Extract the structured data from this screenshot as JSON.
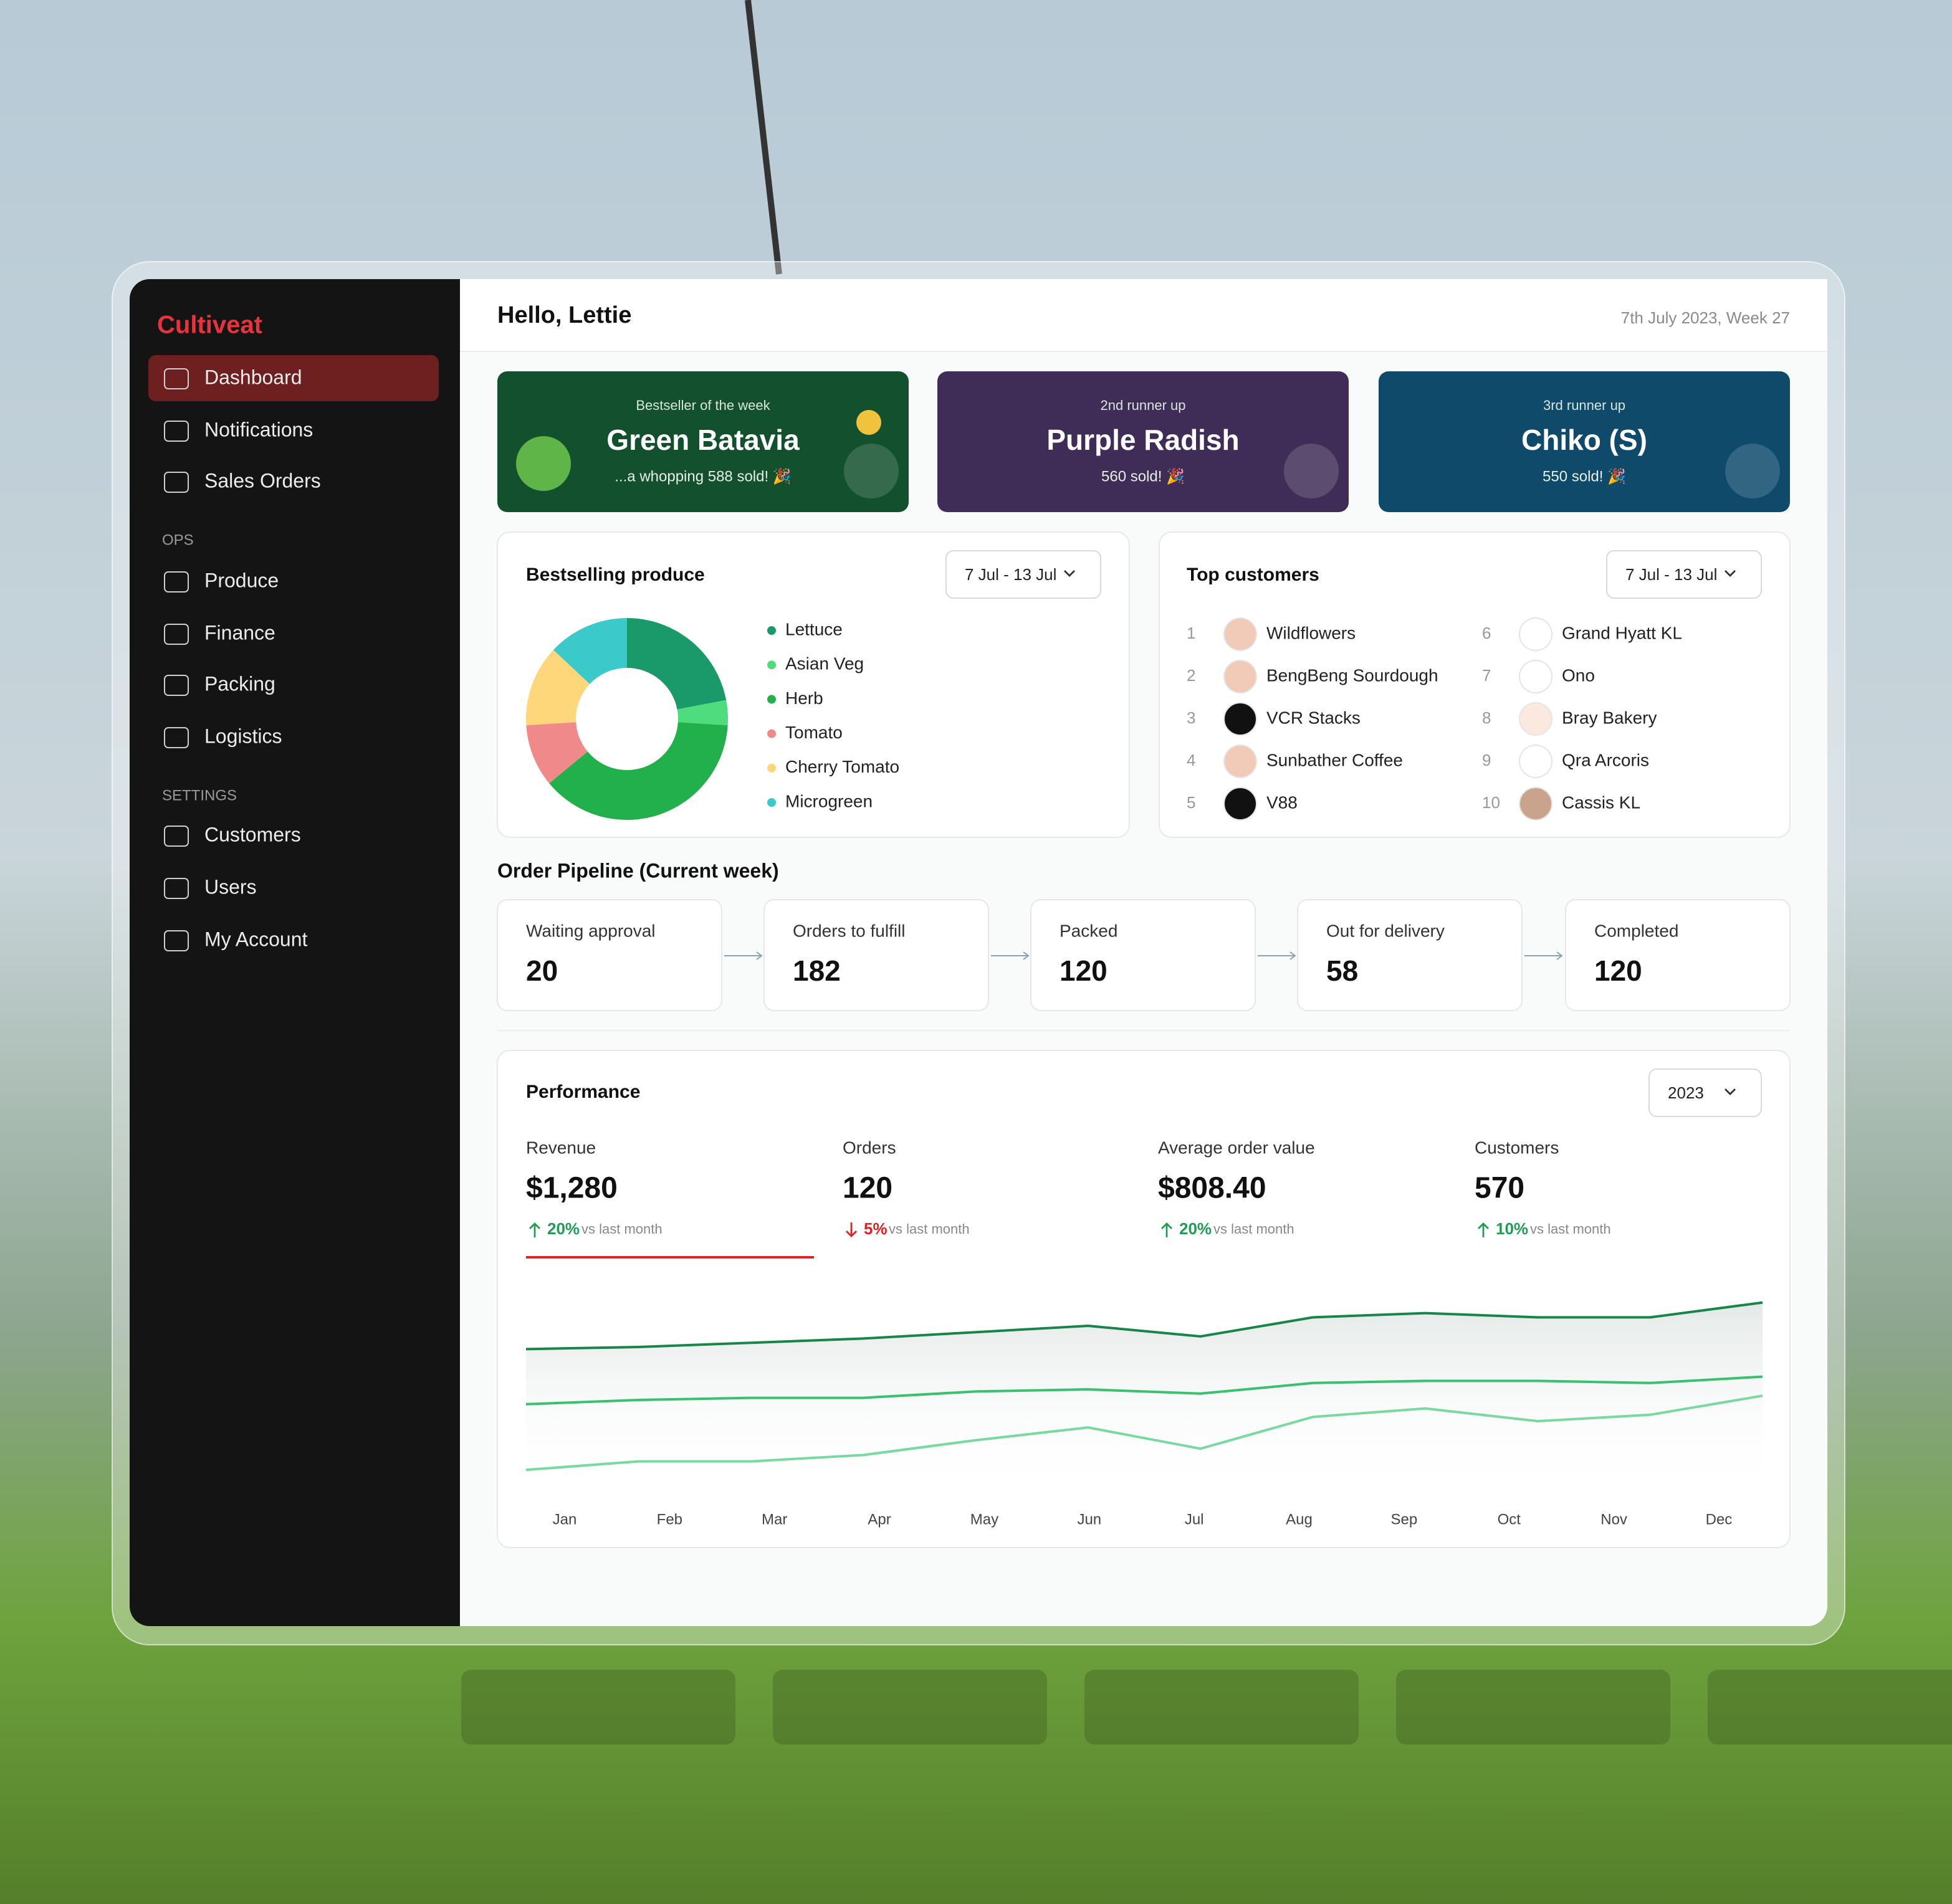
{
  "brand": "Cultiveat",
  "nav": [
    "Dashboard",
    "Notifications",
    "Sales Orders"
  ],
  "ops": {
    "heading": "OPS",
    "items": [
      "Produce",
      "Finance",
      "Packing",
      "Logistics"
    ]
  },
  "settings": {
    "heading": "SETTINGS",
    "items": [
      "Customers",
      "Users",
      "My Account"
    ]
  },
  "header": {
    "greeting": "Hello, Lettie",
    "date": "7th July 2023, Week 27"
  },
  "bestsellers": [
    {
      "kicker": "Bestseller of the week",
      "name": "Green Batavia",
      "note": "...a whopping 588 sold! 🎉"
    },
    {
      "kicker": "2nd runner up",
      "name": "Purple Radish",
      "note": "560 sold! 🎉"
    },
    {
      "kicker": "3rd runner up",
      "name": "Chiko (S)",
      "note": "550 sold! 🎉"
    }
  ],
  "bestselling": {
    "range": "7 Jul - 13 Jul"
  },
  "top_customers": {
    "title": "Top customers",
    "range": "7 Jul - 13 Jul",
    "rows": [
      {
        "rank": 1,
        "name": "Wildflowers"
      },
      {
        "rank": 2,
        "name": "BengBeng Sourdough"
      },
      {
        "rank": 3,
        "name": "VCR Stacks"
      },
      {
        "rank": 4,
        "name": "Sunbather Coffee"
      },
      {
        "rank": 5,
        "name": "V88"
      },
      {
        "rank": 6,
        "name": "Grand Hyatt KL"
      },
      {
        "rank": 7,
        "name": "Ono"
      },
      {
        "rank": 8,
        "name": "Bray Bakery"
      },
      {
        "rank": 9,
        "name": "Qra Arcoris"
      },
      {
        "rank": 10,
        "name": "Cassis KL"
      }
    ]
  },
  "pipeline": {
    "title": "Order Pipeline (Current week)",
    "stages": [
      {
        "label": "Waiting approval",
        "value": 20
      },
      {
        "label": "Orders to fulfill",
        "value": 182
      },
      {
        "label": "Packed",
        "value": 120
      },
      {
        "label": "Out for delivery",
        "value": 58
      },
      {
        "label": "Completed",
        "value": 120
      }
    ]
  },
  "performance": {
    "year": "2023",
    "metrics": [
      {
        "label": "Revenue",
        "value": "$1,280",
        "change": "20%",
        "direction": "up",
        "note": "vs last month"
      },
      {
        "label": "Orders",
        "value": "120",
        "change": "5%",
        "direction": "down",
        "note": "vs last month"
      },
      {
        "label": "Average order value",
        "value": "$808.40",
        "change": "20%",
        "direction": "up",
        "note": "vs last month"
      },
      {
        "label": "Customers",
        "value": "570",
        "change": "10%",
        "direction": "up",
        "note": "vs last month"
      }
    ]
  },
  "chart_data": [
    {
      "type": "donut",
      "title": "Bestselling produce",
      "categories": [
        "Lettuce",
        "Asian Veg",
        "Herb",
        "Tomato",
        "Cherry Tomato",
        "Microgreen"
      ],
      "values": [
        22,
        4,
        38,
        10,
        13,
        13
      ],
      "colors": [
        "#1a9a6b",
        "#4fdc7f",
        "#21b04b",
        "#f08a8a",
        "#fdd77a",
        "#3cc9c9"
      ]
    },
    {
      "type": "line",
      "title": "Performance",
      "categories": [
        "Jan",
        "Feb",
        "Mar",
        "Apr",
        "May",
        "Jun",
        "Jul",
        "Aug",
        "Sep",
        "Oct",
        "Nov",
        "Dec"
      ],
      "ylim": [
        0,
        100
      ],
      "series": [
        {
          "color": "#18864a",
          "values": [
            69,
            70,
            72,
            74,
            77,
            80,
            75,
            84,
            86,
            84,
            84,
            91
          ]
        },
        {
          "color": "#39c170",
          "values": [
            43,
            45,
            46,
            46,
            49,
            50,
            48,
            53,
            54,
            54,
            53,
            56
          ]
        },
        {
          "color": "#7ad9a1",
          "values": [
            12,
            16,
            16,
            19,
            26,
            32,
            22,
            37,
            41,
            35,
            38,
            47
          ]
        }
      ]
    }
  ]
}
